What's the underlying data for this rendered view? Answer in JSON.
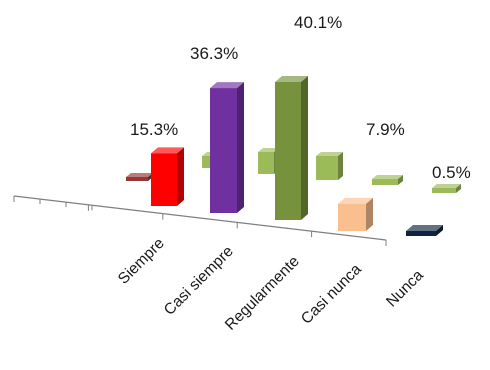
{
  "chart_data": {
    "type": "bar",
    "style": "3d-clustered-perspective",
    "categories": [
      "Siempre",
      "Casi siempre",
      "Regularmente",
      "Casi nunca",
      "Nunca"
    ],
    "values": [
      15.3,
      36.3,
      40.1,
      7.9,
      0.5
    ],
    "data_labels": [
      "15.3%",
      "36.3%",
      "40.1%",
      "7.9%",
      "0.5%"
    ],
    "title": "",
    "xlabel": "",
    "ylabel": "",
    "ylim": [
      0,
      40.1
    ],
    "grid": false,
    "legend": "none",
    "colors": {
      "front_bars": [
        "#ff0000",
        "#7030a0",
        "#76923c",
        "#fabf8f",
        "#0f243e"
      ],
      "back_bars": [
        "#953735",
        "#9bbb59",
        "#9bbb59",
        "#9bbb59",
        "#9bbb59"
      ],
      "axis": "#7f7f7f"
    }
  }
}
